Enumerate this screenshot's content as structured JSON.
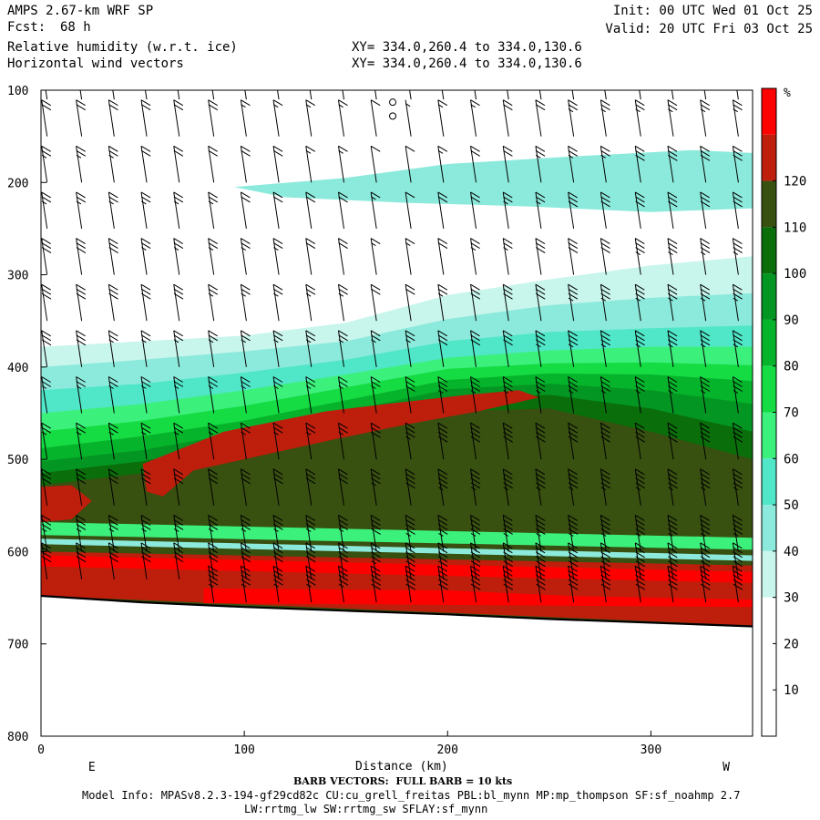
{
  "header": {
    "model": "AMPS 2.67-km WRF SP",
    "fcst_label": "Fcst:",
    "fcst_value": "68 h",
    "field_line1": "Relative humidity (w.r.t. ice)",
    "field_line2": "Horizontal wind vectors",
    "xy_line1": "XY= 334.0,260.4 to 334.0,130.6",
    "xy_line2": "XY= 334.0,260.4 to 334.0,130.6",
    "init": "Init: 00 UTC Wed 01 Oct 25",
    "valid": "Valid: 20 UTC Fri 03 Oct 25"
  },
  "footer": {
    "barb_note": "BARB VECTORS:  FULL BARB = 10 kts",
    "model_info": "Model Info: MPASv8.2.3-194-gf29cd82c CU:cu_grell_freitas PBL:bl_mynn MP:mp_thompson SF:sf_noahmp 2.7",
    "model_info2": "LW:rrtmg_lw SW:rrtmg_sw SFLAY:sf_mynn"
  },
  "chart_data": {
    "type": "heatmap",
    "title": "Relative humidity (w.r.t. ice)",
    "xlabel": "Distance (km)",
    "ylabel": "",
    "x_range": [
      0,
      350
    ],
    "y_range": [
      100,
      800
    ],
    "y_ticks": [
      "100",
      "200",
      "300",
      "400",
      "500",
      "600",
      "700",
      "800"
    ],
    "x_ticks": [
      "0",
      "100",
      "200",
      "300"
    ],
    "x_tick_values": [
      0,
      100,
      200,
      300
    ],
    "y_tick_values": [
      100,
      200,
      300,
      400,
      500,
      600,
      700,
      800
    ],
    "edge_labels": {
      "left": "E",
      "right": "W"
    },
    "colorbar": {
      "unit": "%",
      "labels": [
        "10",
        "20",
        "30",
        "40",
        "50",
        "60",
        "70",
        "80",
        "90",
        "100",
        "110",
        "120"
      ],
      "colors": [
        "#ffffff",
        "#ffffff",
        "#ffffff",
        "#c8f5ec",
        "#8ceadc",
        "#50e6c8",
        "#3cf07c",
        "#16dc44",
        "#06b42c",
        "#049622",
        "#0a6e0a",
        "#385010",
        "#be1e0c",
        "#ff0000"
      ]
    },
    "terrain_km": [
      0,
      50,
      100,
      150,
      200,
      250,
      300,
      350
    ],
    "terrain_hpa": [
      648,
      655,
      660,
      664,
      668,
      673,
      677,
      681
    ],
    "contours": [
      {
        "level": 30,
        "color": "#c8f5ec",
        "top": [
          [
            0,
            378
          ],
          [
            50,
            372
          ],
          [
            100,
            366
          ],
          [
            150,
            352
          ],
          [
            200,
            322
          ],
          [
            250,
            305
          ],
          [
            300,
            290
          ],
          [
            350,
            280
          ]
        ]
      },
      {
        "level": 40,
        "color": "#8ceadc",
        "top": [
          [
            0,
            400
          ],
          [
            50,
            392
          ],
          [
            100,
            383
          ],
          [
            150,
            372
          ],
          [
            200,
            348
          ],
          [
            250,
            333
          ],
          [
            300,
            325
          ],
          [
            350,
            320
          ]
        ]
      },
      {
        "level": 50,
        "color": "#50e6c8",
        "top": [
          [
            0,
            425
          ],
          [
            50,
            418
          ],
          [
            100,
            406
          ],
          [
            150,
            392
          ],
          [
            200,
            372
          ],
          [
            250,
            362
          ],
          [
            300,
            358
          ],
          [
            350,
            355
          ]
        ]
      },
      {
        "level": 60,
        "color": "#3cf07c",
        "top": [
          [
            0,
            450
          ],
          [
            50,
            440
          ],
          [
            100,
            425
          ],
          [
            150,
            408
          ],
          [
            200,
            390
          ],
          [
            250,
            382
          ],
          [
            300,
            378
          ],
          [
            350,
            378
          ]
        ]
      },
      {
        "level": 70,
        "color": "#16dc44",
        "top": [
          [
            0,
            470
          ],
          [
            50,
            458
          ],
          [
            100,
            442
          ],
          [
            150,
            422
          ],
          [
            200,
            402
          ],
          [
            250,
            396
          ],
          [
            300,
            395
          ],
          [
            350,
            398
          ]
        ]
      },
      {
        "level": 80,
        "color": "#06b42c",
        "top": [
          [
            0,
            488
          ],
          [
            50,
            475
          ],
          [
            100,
            458
          ],
          [
            150,
            436
          ],
          [
            200,
            414
          ],
          [
            250,
            407
          ],
          [
            300,
            408
          ],
          [
            350,
            415
          ]
        ]
      },
      {
        "level": 90,
        "color": "#049622",
        "top": [
          [
            0,
            502
          ],
          [
            50,
            490
          ],
          [
            100,
            470
          ],
          [
            150,
            448
          ],
          [
            200,
            424
          ],
          [
            250,
            418
          ],
          [
            300,
            425
          ],
          [
            350,
            440
          ]
        ]
      },
      {
        "level": 100,
        "color": "#0a6e0a",
        "top": [
          [
            0,
            515
          ],
          [
            50,
            502
          ],
          [
            100,
            482
          ],
          [
            150,
            460
          ],
          [
            200,
            436
          ],
          [
            250,
            430
          ],
          [
            300,
            445
          ],
          [
            350,
            470
          ]
        ]
      },
      {
        "level": 110,
        "color": "#385010",
        "top": [
          [
            0,
            528
          ],
          [
            50,
            515
          ],
          [
            100,
            494
          ],
          [
            150,
            470
          ],
          [
            200,
            448
          ],
          [
            250,
            445
          ],
          [
            300,
            470
          ],
          [
            350,
            500
          ]
        ]
      }
    ],
    "red_blobs": [
      {
        "level": 120,
        "color": "#be1e0c",
        "pts": [
          [
            0,
            530
          ],
          [
            15,
            528
          ],
          [
            25,
            545
          ],
          [
            15,
            565
          ],
          [
            0,
            568
          ]
        ]
      },
      {
        "level": 120,
        "color": "#be1e0c",
        "pts": [
          [
            50,
            505
          ],
          [
            90,
            470
          ],
          [
            140,
            448
          ],
          [
            170,
            440
          ],
          [
            210,
            430
          ],
          [
            235,
            425
          ],
          [
            245,
            433
          ],
          [
            215,
            448
          ],
          [
            180,
            462
          ],
          [
            145,
            478
          ],
          [
            110,
            495
          ],
          [
            75,
            512
          ],
          [
            60,
            540
          ],
          [
            52,
            535
          ]
        ]
      },
      {
        "level": 110,
        "color": "#be1e0c",
        "pts": [
          [
            0,
            600
          ],
          [
            350,
            615
          ],
          [
            350,
            680
          ],
          [
            0,
            648
          ]
        ]
      },
      {
        "level": 120,
        "color": "#ff0000",
        "pts": [
          [
            0,
            604
          ],
          [
            350,
            622
          ],
          [
            350,
            634
          ],
          [
            0,
            616
          ]
        ]
      },
      {
        "level": 120,
        "color": "#ff0000",
        "pts": [
          [
            80,
            640
          ],
          [
            200,
            642
          ],
          [
            260,
            648
          ],
          [
            350,
            652
          ],
          [
            350,
            660
          ],
          [
            80,
            656
          ]
        ]
      }
    ],
    "low_band": [
      {
        "color": "#3cf07c",
        "pts": [
          [
            0,
            568
          ],
          [
            350,
            585
          ],
          [
            350,
            598
          ],
          [
            0,
            582
          ]
        ]
      },
      {
        "color": "#8ceadc",
        "pts": [
          [
            0,
            586
          ],
          [
            350,
            604
          ],
          [
            350,
            610
          ],
          [
            0,
            592
          ]
        ]
      }
    ],
    "high_patch": {
      "color": "#8ceadc",
      "pts": [
        [
          95,
          205
        ],
        [
          150,
          195
        ],
        [
          200,
          180
        ],
        [
          260,
          172
        ],
        [
          320,
          165
        ],
        [
          350,
          168
        ],
        [
          350,
          228
        ],
        [
          300,
          232
        ],
        [
          240,
          226
        ],
        [
          180,
          222
        ],
        [
          120,
          216
        ]
      ]
    },
    "wind_barbs_kts": [
      {
        "km": 3,
        "speeds": [
          20,
          20,
          25,
          25,
          30,
          30,
          30,
          25,
          25,
          30,
          35,
          40,
          45
        ]
      },
      {
        "km": 20,
        "speeds": [
          20,
          20,
          25,
          25,
          30,
          30,
          30,
          25,
          25,
          30,
          35,
          40,
          45
        ]
      },
      {
        "km": 36,
        "speeds": [
          20,
          20,
          25,
          25,
          30,
          30,
          25,
          25,
          25,
          30,
          35,
          40,
          45
        ]
      },
      {
        "km": 52,
        "speeds": [
          15,
          20,
          20,
          25,
          25,
          30,
          25,
          25,
          25,
          30,
          35,
          40,
          45
        ]
      },
      {
        "km": 68,
        "speeds": [
          15,
          20,
          20,
          25,
          25,
          30,
          25,
          25,
          25,
          30,
          35,
          40,
          45
        ]
      },
      {
        "km": 85,
        "speeds": [
          15,
          20,
          20,
          25,
          25,
          25,
          25,
          25,
          25,
          30,
          35,
          40,
          45
        ]
      },
      {
        "km": 101,
        "speeds": [
          15,
          15,
          20,
          20,
          25,
          25,
          25,
          25,
          25,
          30,
          35,
          40,
          45
        ]
      },
      {
        "km": 117,
        "speeds": [
          15,
          15,
          20,
          20,
          25,
          25,
          25,
          25,
          25,
          30,
          35,
          40,
          45
        ]
      },
      {
        "km": 133,
        "speeds": [
          10,
          15,
          15,
          20,
          20,
          25,
          25,
          25,
          25,
          30,
          35,
          40,
          45
        ]
      },
      {
        "km": 149,
        "speeds": [
          10,
          15,
          15,
          20,
          20,
          25,
          25,
          25,
          25,
          30,
          35,
          40,
          45
        ]
      },
      {
        "km": 165,
        "speeds": [
          5,
          10,
          10,
          15,
          15,
          20,
          25,
          25,
          30,
          35,
          40,
          45,
          50
        ]
      },
      {
        "km": 182,
        "speeds": [
          5,
          5,
          10,
          10,
          15,
          20,
          25,
          30,
          35,
          40,
          45,
          50,
          50
        ]
      },
      {
        "km": 198,
        "speeds": [
          10,
          15,
          15,
          20,
          20,
          25,
          30,
          35,
          40,
          45,
          45,
          50,
          50
        ]
      },
      {
        "km": 214,
        "speeds": [
          15,
          15,
          20,
          20,
          25,
          30,
          30,
          35,
          40,
          45,
          45,
          50,
          50
        ]
      },
      {
        "km": 230,
        "speeds": [
          15,
          20,
          20,
          25,
          25,
          30,
          30,
          35,
          40,
          45,
          45,
          50,
          50
        ]
      },
      {
        "km": 246,
        "speeds": [
          20,
          20,
          25,
          25,
          30,
          30,
          35,
          35,
          40,
          45,
          45,
          50,
          50
        ]
      },
      {
        "km": 262,
        "speeds": [
          20,
          25,
          25,
          30,
          30,
          35,
          35,
          35,
          40,
          45,
          45,
          50,
          50
        ]
      },
      {
        "km": 278,
        "speeds": [
          20,
          25,
          25,
          30,
          30,
          35,
          35,
          35,
          40,
          45,
          45,
          50,
          50
        ]
      },
      {
        "km": 295,
        "speeds": [
          25,
          25,
          30,
          30,
          35,
          35,
          35,
          35,
          40,
          45,
          45,
          50,
          50
        ]
      },
      {
        "km": 311,
        "speeds": [
          25,
          25,
          30,
          30,
          35,
          35,
          35,
          35,
          40,
          45,
          45,
          50,
          50
        ]
      },
      {
        "km": 327,
        "speeds": [
          25,
          25,
          30,
          30,
          35,
          35,
          35,
          35,
          40,
          45,
          45,
          50,
          50
        ]
      },
      {
        "km": 343,
        "speeds": [
          25,
          25,
          30,
          30,
          35,
          35,
          35,
          35,
          40,
          45,
          45,
          50,
          50
        ]
      }
    ],
    "barb_levels_hpa": [
      110,
      150,
      200,
      250,
      300,
      350,
      400,
      450,
      500,
      550,
      600,
      630,
      655
    ],
    "calm_markers": [
      {
        "km": 173,
        "hpa": 113
      },
      {
        "km": 173,
        "hpa": 128
      }
    ]
  }
}
